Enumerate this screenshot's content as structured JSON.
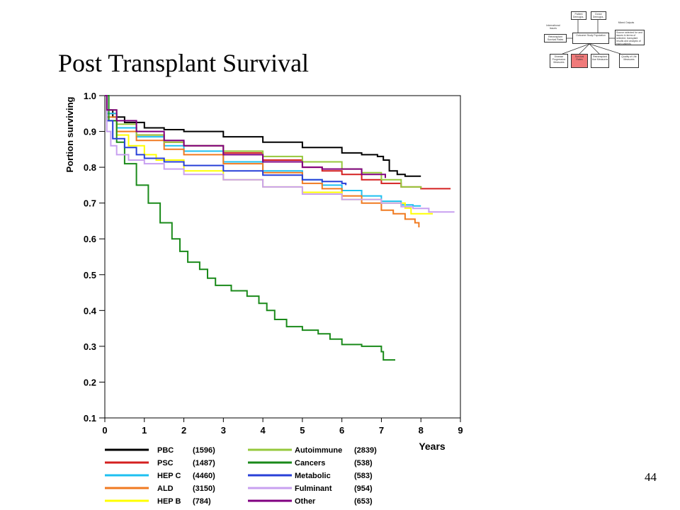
{
  "slide": {
    "title": "Post Transplant Survival",
    "page_number": "44"
  },
  "flow_diagram": {
    "highlight_color": "#f07a7a",
    "boxes": [
      "Patient Demogra..",
      "Donor Demogra..",
      "International Issues",
      "Retransplant Survival Rates",
      "Outcome Study Population",
      "Recipient Outcomes",
      "Disease Progression Measures",
      "Survival Rates",
      "Retransplant Use Measures",
      "Quality of Life Measures",
      "Source selected for and issues in terms of selected, transplant results and analysis of each patients"
    ],
    "labels": [
      "Mixed Outputs"
    ]
  },
  "chart_data": {
    "type": "line",
    "title": "",
    "xlabel": "Years",
    "ylabel": "Portion surviving",
    "xlim": [
      0,
      9
    ],
    "ylim": [
      0.1,
      1.0
    ],
    "x_ticks": [
      "0",
      "1",
      "2",
      "3",
      "4",
      "5",
      "6",
      "7",
      "8",
      "9"
    ],
    "y_ticks": [
      "1.0",
      "0.9",
      "0.8",
      "0.7",
      "0.6",
      "0.5",
      "0.4",
      "0.3",
      "0.2",
      "0.1"
    ],
    "step_lines": true,
    "series": [
      {
        "name": "PBC",
        "count": "(1596)",
        "color": "#000000",
        "points": [
          [
            0,
            1.0
          ],
          [
            0.05,
            0.96
          ],
          [
            0.2,
            0.94
          ],
          [
            0.5,
            0.925
          ],
          [
            1,
            0.91
          ],
          [
            1.5,
            0.905
          ],
          [
            2,
            0.9
          ],
          [
            3,
            0.885
          ],
          [
            4,
            0.87
          ],
          [
            5,
            0.855
          ],
          [
            6,
            0.84
          ],
          [
            6.5,
            0.835
          ],
          [
            6.9,
            0.83
          ],
          [
            7.05,
            0.82
          ],
          [
            7.2,
            0.79
          ],
          [
            7.4,
            0.78
          ],
          [
            7.6,
            0.775
          ],
          [
            8.0,
            0.775
          ]
        ]
      },
      {
        "name": "PSC",
        "count": "(1487)",
        "color": "#d42020",
        "points": [
          [
            0,
            1.0
          ],
          [
            0.05,
            0.95
          ],
          [
            0.3,
            0.91
          ],
          [
            0.8,
            0.89
          ],
          [
            1.5,
            0.87
          ],
          [
            2,
            0.86
          ],
          [
            3,
            0.84
          ],
          [
            4,
            0.82
          ],
          [
            5,
            0.8
          ],
          [
            5.5,
            0.79
          ],
          [
            6,
            0.78
          ],
          [
            6.5,
            0.765
          ],
          [
            7,
            0.755
          ],
          [
            7.5,
            0.745
          ],
          [
            8.0,
            0.74
          ],
          [
            8.75,
            0.74
          ]
        ]
      },
      {
        "name": "HEP C",
        "count": "(4460)",
        "color": "#1ec0f0",
        "points": [
          [
            0,
            1.0
          ],
          [
            0.05,
            0.95
          ],
          [
            0.3,
            0.91
          ],
          [
            0.8,
            0.885
          ],
          [
            1.5,
            0.86
          ],
          [
            2,
            0.845
          ],
          [
            3,
            0.815
          ],
          [
            4,
            0.79
          ],
          [
            5,
            0.765
          ],
          [
            5.5,
            0.75
          ],
          [
            6,
            0.735
          ],
          [
            6.5,
            0.72
          ],
          [
            7,
            0.705
          ],
          [
            7.5,
            0.695
          ],
          [
            7.8,
            0.692
          ],
          [
            8.0,
            0.692
          ]
        ]
      },
      {
        "name": "ALD",
        "count": "(3150)",
        "color": "#f07a20",
        "points": [
          [
            0,
            1.0
          ],
          [
            0.05,
            0.94
          ],
          [
            0.3,
            0.9
          ],
          [
            0.8,
            0.875
          ],
          [
            1.5,
            0.85
          ],
          [
            2,
            0.835
          ],
          [
            3,
            0.81
          ],
          [
            4,
            0.785
          ],
          [
            5,
            0.755
          ],
          [
            5.5,
            0.74
          ],
          [
            6,
            0.72
          ],
          [
            6.5,
            0.7
          ],
          [
            7,
            0.68
          ],
          [
            7.3,
            0.67
          ],
          [
            7.6,
            0.655
          ],
          [
            7.85,
            0.645
          ],
          [
            7.95,
            0.632
          ]
        ]
      },
      {
        "name": "HEP B",
        "count": "(784)",
        "color": "#ffff00",
        "points": [
          [
            0,
            1.0
          ],
          [
            0.05,
            0.93
          ],
          [
            0.3,
            0.89
          ],
          [
            0.6,
            0.86
          ],
          [
            1,
            0.835
          ],
          [
            1.3,
            0.82
          ],
          [
            2,
            0.79
          ],
          [
            3,
            0.765
          ],
          [
            4,
            0.745
          ],
          [
            5,
            0.73
          ],
          [
            6,
            0.71
          ],
          [
            7,
            0.7
          ],
          [
            7.6,
            0.686
          ],
          [
            7.75,
            0.67
          ],
          [
            8.3,
            0.67
          ]
        ]
      },
      {
        "name": "Autoimmune",
        "count": "(2839)",
        "color": "#96c83c",
        "points": [
          [
            0,
            1.0
          ],
          [
            0.05,
            0.96
          ],
          [
            0.3,
            0.92
          ],
          [
            0.8,
            0.89
          ],
          [
            1.5,
            0.87
          ],
          [
            2,
            0.86
          ],
          [
            3,
            0.845
          ],
          [
            4,
            0.83
          ],
          [
            5,
            0.815
          ],
          [
            6,
            0.795
          ],
          [
            6.5,
            0.785
          ],
          [
            7,
            0.765
          ],
          [
            7.5,
            0.745
          ],
          [
            8.0,
            0.74
          ]
        ]
      },
      {
        "name": "Cancers",
        "count": "(538)",
        "color": "#1a8a1a",
        "points": [
          [
            0,
            1.0
          ],
          [
            0.1,
            0.93
          ],
          [
            0.3,
            0.87
          ],
          [
            0.5,
            0.81
          ],
          [
            0.8,
            0.75
          ],
          [
            1.1,
            0.7
          ],
          [
            1.4,
            0.645
          ],
          [
            1.7,
            0.6
          ],
          [
            1.9,
            0.565
          ],
          [
            2.1,
            0.535
          ],
          [
            2.4,
            0.515
          ],
          [
            2.6,
            0.49
          ],
          [
            2.8,
            0.47
          ],
          [
            3.2,
            0.455
          ],
          [
            3.6,
            0.44
          ],
          [
            3.9,
            0.42
          ],
          [
            4.1,
            0.4
          ],
          [
            4.3,
            0.375
          ],
          [
            4.6,
            0.355
          ],
          [
            5,
            0.345
          ],
          [
            5.4,
            0.335
          ],
          [
            5.7,
            0.32
          ],
          [
            6,
            0.305
          ],
          [
            6.5,
            0.3
          ],
          [
            6.8,
            0.3
          ],
          [
            7.0,
            0.285
          ],
          [
            7.05,
            0.262
          ],
          [
            7.35,
            0.262
          ]
        ]
      },
      {
        "name": "Metabolic",
        "count": "(583)",
        "color": "#2840d8",
        "points": [
          [
            0,
            1.0
          ],
          [
            0.05,
            0.93
          ],
          [
            0.2,
            0.88
          ],
          [
            0.5,
            0.855
          ],
          [
            0.8,
            0.835
          ],
          [
            1,
            0.825
          ],
          [
            1.5,
            0.815
          ],
          [
            2,
            0.805
          ],
          [
            3,
            0.79
          ],
          [
            4,
            0.778
          ],
          [
            5,
            0.765
          ],
          [
            5.5,
            0.76
          ],
          [
            6,
            0.755
          ],
          [
            6.1,
            0.75
          ]
        ]
      },
      {
        "name": "Fulminant",
        "count": "(954)",
        "color": "#c8a0f0",
        "points": [
          [
            0,
            1.0
          ],
          [
            0.05,
            0.9
          ],
          [
            0.15,
            0.86
          ],
          [
            0.3,
            0.835
          ],
          [
            0.6,
            0.82
          ],
          [
            1,
            0.81
          ],
          [
            1.5,
            0.795
          ],
          [
            2,
            0.78
          ],
          [
            3,
            0.765
          ],
          [
            4,
            0.745
          ],
          [
            5,
            0.725
          ],
          [
            6,
            0.71
          ],
          [
            7,
            0.7
          ],
          [
            7.5,
            0.69
          ],
          [
            7.8,
            0.685
          ],
          [
            8.2,
            0.675
          ],
          [
            8.85,
            0.675
          ]
        ]
      },
      {
        "name": "Other",
        "count": "(653)",
        "color": "#800080",
        "points": [
          [
            0,
            1.0
          ],
          [
            0.05,
            0.96
          ],
          [
            0.3,
            0.93
          ],
          [
            0.8,
            0.9
          ],
          [
            1.5,
            0.875
          ],
          [
            2,
            0.86
          ],
          [
            3,
            0.835
          ],
          [
            4,
            0.815
          ],
          [
            5,
            0.8
          ],
          [
            5.5,
            0.795
          ],
          [
            6,
            0.795
          ],
          [
            6.5,
            0.78
          ],
          [
            7.1,
            0.77
          ]
        ]
      }
    ]
  }
}
